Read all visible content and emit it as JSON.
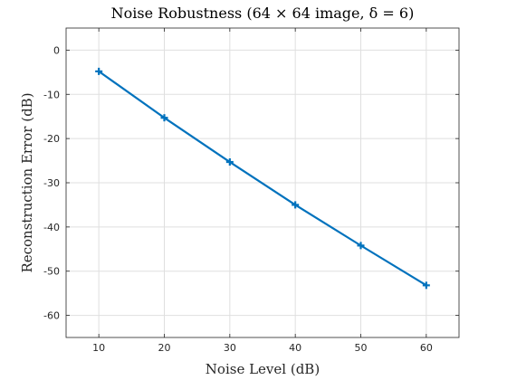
{
  "chart_data": {
    "type": "line",
    "title": "Noise Robustness (64 × 64 image, δ = 6)",
    "xlabel": "Noise Level (dB)",
    "ylabel": "Reconstruction Error (dB)",
    "xlim": [
      5,
      65
    ],
    "ylim": [
      -65,
      5
    ],
    "xticks": [
      10,
      20,
      30,
      40,
      50,
      60
    ],
    "yticks": [
      0,
      -10,
      -20,
      -30,
      -40,
      -50,
      -60
    ],
    "grid": true,
    "legend": "none",
    "series": [
      {
        "color": "#0072BD",
        "marker": "plus",
        "x": [
          10,
          20,
          30,
          40,
          50,
          60
        ],
        "y": [
          -4.8,
          -15.3,
          -25.3,
          -35.0,
          -44.2,
          -53.2
        ]
      }
    ]
  }
}
